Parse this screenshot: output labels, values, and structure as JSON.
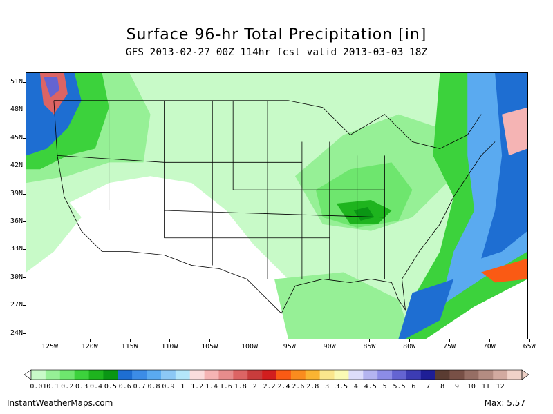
{
  "title": "Surface 96-hr Total Precipitation [in]",
  "subtitle": "GFS 2013-02-27 00Z 114hr fcst valid 2013-03-03 18Z",
  "map": {
    "lat_labels": [
      "51N",
      "48N",
      "45N",
      "42N",
      "39N",
      "36N",
      "33N",
      "30N",
      "27N",
      "24N"
    ],
    "lon_labels": [
      "125W",
      "120W",
      "115W",
      "110W",
      "105W",
      "100W",
      "95W",
      "90W",
      "85W",
      "80W",
      "75W",
      "70W",
      "65W"
    ]
  },
  "colorbar": {
    "labels": [
      "0.01",
      "0.1",
      "0.2",
      "0.3",
      "0.4",
      "0.5",
      "0.6",
      "0.7",
      "0.8",
      "0.9",
      "1",
      "1.2",
      "1.4",
      "1.6",
      "1.8",
      "2",
      "2.2",
      "2.4",
      "2.6",
      "2.8",
      "3",
      "3.5",
      "4",
      "4.5",
      "5",
      "5.5",
      "6",
      "7",
      "8",
      "9",
      "10",
      "11",
      "12"
    ],
    "colors": [
      "#c8fac8",
      "#96f096",
      "#6ee66e",
      "#3cd23c",
      "#1eb41e",
      "#0a9614",
      "#1e6ed2",
      "#3c8ce6",
      "#5aaaf0",
      "#8cc8f5",
      "#b4e6fa",
      "#fadcdc",
      "#f5b4b4",
      "#e68c8c",
      "#dc6464",
      "#c83c3c",
      "#d21e1e",
      "#fa5a14",
      "#fa8c1e",
      "#fab432",
      "#fae68c",
      "#fafab4",
      "#dcdcfa",
      "#b4b4f0",
      "#8c8ce6",
      "#6464d2",
      "#3c3cb4",
      "#1e1e96",
      "#5a3c32",
      "#785046",
      "#966e64",
      "#b48c82",
      "#d2aaa0",
      "#f0d2c8"
    ]
  },
  "footer": {
    "site": "InstantWeatherMaps.com",
    "max": "Max:  5.57"
  }
}
